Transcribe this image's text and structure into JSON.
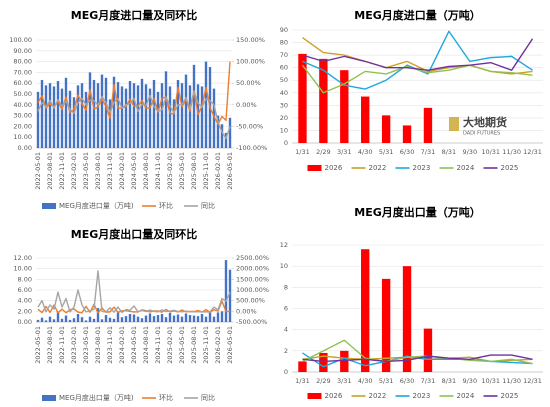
{
  "chart_data": [
    {
      "type": "combo",
      "title": "MEG月度进口量及同环比",
      "grid": true,
      "categories": [
        "2022-05-01",
        null,
        null,
        "2022-08-01",
        null,
        null,
        "2022-11-01",
        null,
        null,
        "2023-02-01",
        null,
        null,
        "2023-05-01",
        null,
        null,
        "2023-08-01",
        null,
        null,
        "2023-11-01",
        null,
        null,
        "2024-02-01",
        null,
        null,
        "2024-05-01",
        null,
        null,
        "2024-08-01",
        null,
        null,
        "2024-11-01",
        null,
        null,
        "2025-02-01",
        null,
        null,
        "2025-05-01",
        null,
        null,
        "2025-08-01",
        null,
        null,
        "2025-11-01",
        null,
        null,
        "2026-02-01",
        null,
        null,
        "2026-05-01"
      ],
      "ylim": [
        0,
        100
      ],
      "yticks": [
        {
          "value": 0,
          "label": "0.00"
        },
        {
          "value": 10,
          "label": "10.00"
        },
        {
          "value": 20,
          "label": "20.00"
        },
        {
          "value": 30,
          "label": "30.00"
        },
        {
          "value": 40,
          "label": "40.00"
        },
        {
          "value": 50,
          "label": "50.00"
        },
        {
          "value": 60,
          "label": "60.00"
        },
        {
          "value": 70,
          "label": "70.00"
        },
        {
          "value": 80,
          "label": "80.00"
        },
        {
          "value": 90,
          "label": "90.00"
        },
        {
          "value": 100,
          "label": "100.00"
        }
      ],
      "y2lim": [
        -100,
        150
      ],
      "y2ticks": [
        {
          "value": -100,
          "label": "-100.00%"
        },
        {
          "value": -50,
          "label": "-50.00%"
        },
        {
          "value": 0,
          "label": "0.00%"
        },
        {
          "value": 50,
          "label": "50.00%"
        },
        {
          "value": 100,
          "label": "100.00%"
        },
        {
          "value": 150,
          "label": "150.00%"
        }
      ],
      "series": [
        {
          "name": "MEG月度进口量（万吨)",
          "type": "bar",
          "color": "#4472c4",
          "values": [
            52,
            63,
            58,
            60,
            57,
            62,
            55,
            65,
            53,
            47,
            58,
            60,
            52,
            70,
            63,
            60,
            68,
            65,
            45,
            66,
            61,
            57,
            55,
            62,
            60,
            58,
            64,
            59,
            55,
            63,
            52,
            60,
            71,
            57,
            45,
            63,
            60,
            68,
            58,
            77,
            59,
            57,
            80,
            75,
            55,
            30,
            22,
            14,
            28
          ]
        },
        {
          "name": "环比",
          "type": "line",
          "axis": "y2",
          "color": "#ed7d31",
          "values": [
            5,
            21,
            -8,
            3,
            -5,
            9,
            -11,
            18,
            -18,
            -11,
            23,
            3,
            -13,
            35,
            -10,
            -5,
            13,
            -4,
            -31,
            47,
            -8,
            -7,
            -4,
            13,
            -3,
            -3,
            10,
            -8,
            -7,
            15,
            -17,
            15,
            18,
            -20,
            -21,
            40,
            -5,
            13,
            -15,
            33,
            -23,
            -3,
            40,
            -6,
            -27,
            -45,
            -27,
            -36,
            100
          ]
        },
        {
          "name": "同比",
          "type": "line",
          "axis": "y2",
          "color": "#a5a5a5",
          "values": [
            -15,
            5,
            -5,
            10,
            -8,
            12,
            -3,
            8,
            -10,
            -20,
            5,
            15,
            0,
            11,
            9,
            0,
            19,
            5,
            -18,
            6,
            15,
            -8,
            0,
            3,
            15,
            -16,
            2,
            -2,
            22,
            -5,
            -15,
            -12,
            18,
            -3,
            -18,
            0,
            0,
            17,
            -9,
            31,
            4,
            -5,
            14,
            10,
            0,
            -40,
            -63,
            -78,
            -50
          ]
        }
      ]
    },
    {
      "type": "combo",
      "title": "MEG月度进口量（万吨）",
      "grid": true,
      "watermark": [
        "大地期货",
        "DADI FUTURES"
      ],
      "categories": [
        "1/31",
        "2/29",
        "3/31",
        "4/30",
        "5/31",
        "6/30",
        "7/31",
        "8/31",
        "9/30",
        "10/31",
        "11/30",
        "12/31"
      ],
      "ylim": [
        0,
        90
      ],
      "yticks": [
        0,
        10,
        20,
        30,
        40,
        50,
        60,
        70,
        80,
        90
      ],
      "series": [
        {
          "name": "2026",
          "type": "bar",
          "color": "#ff0000",
          "values": [
            71,
            67,
            58,
            37,
            22,
            14,
            28,
            null,
            null,
            null,
            null,
            null
          ]
        },
        {
          "name": "2022",
          "type": "line",
          "color": "#c9a227",
          "values": [
            84,
            72,
            70,
            65,
            60,
            65,
            57,
            60,
            62,
            57,
            55,
            57
          ]
        },
        {
          "name": "2023",
          "type": "line",
          "color": "#1ea7e1",
          "values": [
            65,
            58,
            46,
            43,
            50,
            62,
            55,
            89,
            65,
            68,
            69,
            58
          ]
        },
        {
          "name": "2024",
          "type": "line",
          "color": "#92c050",
          "values": [
            62,
            40,
            47,
            57,
            55,
            61,
            56,
            58,
            62,
            57,
            56,
            54
          ]
        },
        {
          "name": "2025",
          "type": "line",
          "color": "#7030a0",
          "values": [
            70,
            65,
            69,
            65,
            60,
            60,
            58,
            61,
            62,
            64,
            58,
            83
          ]
        }
      ]
    },
    {
      "type": "combo",
      "title": "MEG月度出口量及同环比",
      "grid": true,
      "categories": [
        "2022-05-01",
        null,
        null,
        "2022-08-01",
        null,
        null,
        "2022-11-01",
        null,
        null,
        "2023-02-01",
        null,
        null,
        "2023-05-01",
        null,
        null,
        "2023-08-01",
        null,
        null,
        "2023-11-01",
        null,
        null,
        "2024-02-01",
        null,
        null,
        "2024-05-01",
        null,
        null,
        "2024-08-01",
        null,
        null,
        "2024-11-01",
        null,
        null,
        "2025-02-01",
        null,
        null,
        "2025-05-01",
        null,
        null,
        "2025-08-01",
        null,
        null,
        "2025-11-01",
        null,
        null,
        "2026-02-01",
        null,
        null,
        "2026-05-01"
      ],
      "ylim": [
        0,
        12
      ],
      "yticks": [
        {
          "value": 0,
          "label": "0.00"
        },
        {
          "value": 2,
          "label": "2.00"
        },
        {
          "value": 4,
          "label": "4.00"
        },
        {
          "value": 6,
          "label": "6.00"
        },
        {
          "value": 8,
          "label": "8.00"
        },
        {
          "value": 10,
          "label": "10.00"
        },
        {
          "value": 12,
          "label": "12.00"
        }
      ],
      "y2lim": [
        -500,
        2500
      ],
      "y2ticks": [
        {
          "value": -500,
          "label": "-500.00%"
        },
        {
          "value": 0,
          "label": "0.00%"
        },
        {
          "value": 500,
          "label": "500.00%"
        },
        {
          "value": 1000,
          "label": "1000.00%"
        },
        {
          "value": 1500,
          "label": "1500.00%"
        },
        {
          "value": 2000,
          "label": "2000.00%"
        },
        {
          "value": 2500,
          "label": "2500.00%"
        }
      ],
      "series": [
        {
          "name": "MEG月度出口量（万吨)",
          "type": "bar",
          "color": "#4472c4",
          "values": [
            0.4,
            0.8,
            0.3,
            1.0,
            0.5,
            2.0,
            0.6,
            1.2,
            0.4,
            0.7,
            1.5,
            0.9,
            0.3,
            1.0,
            0.6,
            2.6,
            0.5,
            1.3,
            0.8,
            0.6,
            1.8,
            0.9,
            1.1,
            1.5,
            1.4,
            1.0,
            0.7,
            1.2,
            1.6,
            1.1,
            1.3,
            1.5,
            0.9,
            1.7,
            1.2,
            1.4,
            1.0,
            1.6,
            1.3,
            1.2,
            1.1,
            1.5,
            1.0,
            1.8,
            1.0,
            1.8,
            2.0,
            11.6,
            9.8
          ]
        },
        {
          "name": "环比",
          "type": "line",
          "axis": "y2",
          "color": "#ed7d31",
          "values": [
            100,
            -60,
            230,
            -50,
            300,
            -70,
            100,
            -67,
            75,
            114,
            -40,
            -67,
            233,
            -40,
            333,
            -81,
            160,
            -38,
            -25,
            200,
            -50,
            22,
            36,
            -7,
            -29,
            -30,
            71,
            33,
            -31,
            18,
            15,
            -40,
            89,
            -29,
            17,
            -29,
            60,
            -19,
            -8,
            -8,
            36,
            -33,
            80,
            -44,
            80,
            11,
            480,
            -16,
            0
          ]
        },
        {
          "name": "同比",
          "type": "line",
          "axis": "y2",
          "color": "#a5a5a5",
          "values": [
            200,
            500,
            -20,
            300,
            100,
            900,
            200,
            600,
            -30,
            200,
            1000,
            300,
            -25,
            25,
            100,
            1900,
            0,
            -35,
            167,
            -40,
            200,
            -55,
            83,
            50,
            250,
            -20,
            40,
            -10,
            60,
            0,
            -28,
            67,
            -10,
            13,
            50,
            -7,
            -23,
            7,
            -20,
            -21,
            -15,
            -30,
            -20,
            -30,
            200,
            70,
            600,
            470,
            900
          ]
        }
      ]
    },
    {
      "type": "combo",
      "title": "MEG月度出口量（万吨）",
      "grid": true,
      "categories": [
        "1/31",
        "2/29",
        "3/31",
        "4/30",
        "5/31",
        "6/30",
        "7/31",
        "8/31",
        "9/30",
        "10/31",
        "11/30",
        "12/31"
      ],
      "ylim": [
        0,
        12
      ],
      "yticks": [
        0,
        2,
        4,
        6,
        8,
        10,
        12
      ],
      "series": [
        {
          "name": "2026",
          "type": "bar",
          "color": "#ff0000",
          "values": [
            1.0,
            1.8,
            2.0,
            11.6,
            8.8,
            10.0,
            4.1,
            null,
            null,
            null,
            null,
            null
          ]
        },
        {
          "name": "2022",
          "type": "line",
          "color": "#c9a227",
          "values": [
            1.2,
            1.5,
            1.3,
            1.2,
            1.3,
            1.4,
            1.2,
            1.3,
            1.4,
            1.0,
            1.1,
            1.2
          ]
        },
        {
          "name": "2023",
          "type": "line",
          "color": "#1ea7e1",
          "values": [
            1.8,
            0.5,
            1.3,
            0.6,
            1.0,
            1.5,
            1.2,
            1.2,
            1.2,
            1.0,
            0.9,
            0.8
          ]
        },
        {
          "name": "2024",
          "type": "line",
          "color": "#92c050",
          "values": [
            1.0,
            2.0,
            3.0,
            1.3,
            1.0,
            1.4,
            1.5,
            1.3,
            1.1,
            1.0,
            1.2,
            0.8
          ]
        },
        {
          "name": "2025",
          "type": "line",
          "color": "#7030a0",
          "values": [
            1.2,
            1.0,
            1.1,
            1.2,
            1.0,
            1.1,
            1.5,
            1.3,
            1.2,
            1.6,
            1.6,
            1.2
          ]
        }
      ]
    }
  ]
}
